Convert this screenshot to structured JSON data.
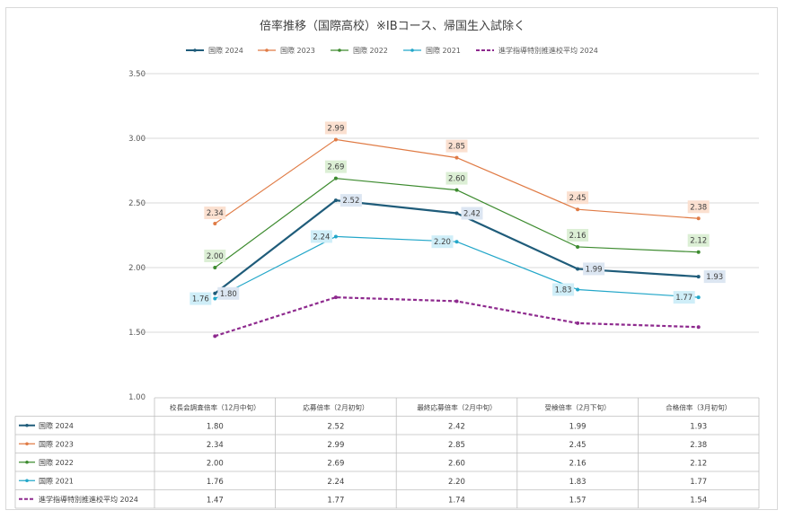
{
  "chart_data": {
    "type": "line",
    "title": "倍率推移（国際高校）※IBコース、帰国生入試除く",
    "categories": [
      "校長会調査倍率（12月中旬）",
      "応募倍率（2月初旬）",
      "最終応募倍率（2月中旬）",
      "受検倍率（2月下旬）",
      "合格倍率（3月初旬）"
    ],
    "ylim": [
      1.0,
      3.5
    ],
    "yticks": [
      "1.00",
      "1.50",
      "2.00",
      "2.50",
      "3.00",
      "3.50"
    ],
    "legend_position": "top",
    "grid": true,
    "series": [
      {
        "name": "国際 2024",
        "values": [
          1.8,
          2.52,
          2.42,
          1.99,
          1.93
        ],
        "labels": [
          "1.80",
          "2.52",
          "2.42",
          "1.99",
          "1.93"
        ],
        "color": "#1f5c7a",
        "label_bg": "#dce6f2",
        "dashed": false,
        "data_labels": true
      },
      {
        "name": "国際 2023",
        "values": [
          2.34,
          2.99,
          2.85,
          2.45,
          2.38
        ],
        "labels": [
          "2.34",
          "2.99",
          "2.85",
          "2.45",
          "2.38"
        ],
        "color": "#e07b45",
        "label_bg": "#fbe0d0",
        "dashed": false,
        "data_labels": true
      },
      {
        "name": "国際 2022",
        "values": [
          2.0,
          2.69,
          2.6,
          2.16,
          2.12
        ],
        "labels": [
          "2.00",
          "2.69",
          "2.60",
          "2.16",
          "2.12"
        ],
        "color": "#3d8b2f",
        "label_bg": "#dcefd5",
        "dashed": false,
        "data_labels": true
      },
      {
        "name": "国際 2021",
        "values": [
          1.76,
          2.24,
          2.2,
          1.83,
          1.77
        ],
        "labels": [
          "1.76",
          "2.24",
          "2.20",
          "1.83",
          "1.77"
        ],
        "color": "#23a7c9",
        "label_bg": "#cfeef8",
        "dashed": false,
        "data_labels": true
      },
      {
        "name": "進学指導特別推進校平均 2024",
        "values": [
          1.47,
          1.77,
          1.74,
          1.57,
          1.54
        ],
        "labels": [
          "1.47",
          "1.77",
          "1.74",
          "1.57",
          "1.54"
        ],
        "color": "#8e2a8e",
        "label_bg": "#ffffff",
        "dashed": true,
        "data_labels": false
      }
    ]
  }
}
